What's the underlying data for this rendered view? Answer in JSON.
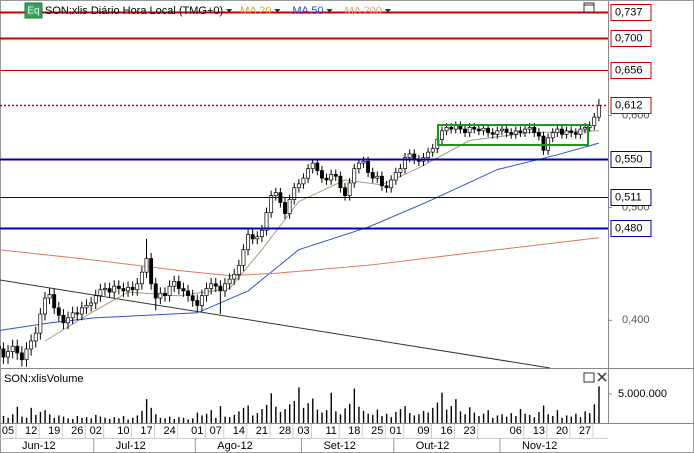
{
  "chart_data": {
    "type": "candlestick",
    "title": "SON:xlis Diário Hora Local (TMG+0)",
    "badge": "Eq",
    "log": true,
    "ylim": [
      0.364,
      0.754
    ],
    "yticks": [
      {
        "value": 0.4,
        "label": "0,400"
      },
      {
        "value": 0.5,
        "label": "0,500"
      },
      {
        "value": 0.6,
        "label": "0,600"
      }
    ],
    "levels": [
      {
        "value": 0.737,
        "label": "0,737",
        "color": "#c00000",
        "width": 2,
        "dashed": false
      },
      {
        "value": 0.7,
        "label": "0,700",
        "color": "#c00000",
        "width": 2,
        "dashed": false
      },
      {
        "value": 0.656,
        "label": "0,656",
        "color": "#c00000",
        "width": 1,
        "dashed": false
      },
      {
        "value": 0.612,
        "label": "0,612",
        "color": "#c00000",
        "width": 1.5,
        "dashed": true
      },
      {
        "value": 0.55,
        "label": "0,550",
        "color": "#0000a0",
        "width": 2,
        "dashed": false
      },
      {
        "value": 0.511,
        "label": "0,511",
        "color": "#0000a0",
        "width": 1,
        "dashed": false
      },
      {
        "value": 0.48,
        "label": "0,480",
        "color": "#0000a0",
        "width": 2,
        "dashed": false
      }
    ],
    "categories": [
      null,
      null,
      "05",
      null,
      null,
      null,
      null,
      "12",
      null,
      null,
      null,
      null,
      "19",
      null,
      null,
      null,
      null,
      "26",
      null,
      null,
      null,
      "02",
      null,
      null,
      null,
      null,
      null,
      "10",
      null,
      null,
      null,
      null,
      "17",
      null,
      null,
      null,
      null,
      "24",
      null,
      null,
      null,
      null,
      null,
      "01",
      null,
      null,
      null,
      "07",
      null,
      null,
      null,
      null,
      "14",
      null,
      null,
      null,
      null,
      "21",
      null,
      null,
      null,
      null,
      "28",
      null,
      null,
      null,
      "03",
      null,
      null,
      null,
      null,
      null,
      "11",
      null,
      null,
      null,
      null,
      "18",
      null,
      null,
      null,
      null,
      "25",
      null,
      null,
      null,
      "01",
      null,
      null,
      null,
      null,
      null,
      "09",
      null,
      null,
      null,
      null,
      "16",
      null,
      null,
      null,
      null,
      "23",
      null,
      null,
      null,
      null,
      null,
      null,
      null,
      null,
      null,
      "06",
      null,
      null,
      null,
      null,
      "13",
      null,
      null,
      null,
      null,
      "20",
      null,
      null,
      null,
      null,
      "27",
      null,
      null,
      null
    ],
    "months": [
      "Jun-12",
      "Jul-12",
      "Ago-12",
      "Set-12",
      "Out-12",
      "Nov-12"
    ],
    "open": [
      0.38,
      0.378,
      0.372,
      0.376,
      0.38,
      0.375,
      0.37,
      0.378,
      0.384,
      0.39,
      0.405,
      0.418,
      0.421,
      0.41,
      0.404,
      0.398,
      0.402,
      0.406,
      0.405,
      0.41,
      0.412,
      0.414,
      0.42,
      0.425,
      0.426,
      0.423,
      0.428,
      0.426,
      0.424,
      0.427,
      0.425,
      0.43,
      0.44,
      0.452,
      0.43,
      0.418,
      0.422,
      0.42,
      0.428,
      0.432,
      0.426,
      0.424,
      0.42,
      0.416,
      0.412,
      0.42,
      0.426,
      0.43,
      0.428,
      0.424,
      0.43,
      0.434,
      0.438,
      0.446,
      0.46,
      0.474,
      0.47,
      0.472,
      0.478,
      0.495,
      0.512,
      0.515,
      0.505,
      0.494,
      0.508,
      0.52,
      0.524,
      0.53,
      0.54,
      0.546,
      0.538,
      0.53,
      0.528,
      0.534,
      0.532,
      0.52,
      0.512,
      0.525,
      0.54,
      0.546,
      0.548,
      0.536,
      0.53,
      0.532,
      0.522,
      0.52,
      0.528,
      0.536,
      0.54,
      0.552,
      0.556,
      0.55,
      0.548,
      0.552,
      0.558,
      0.562,
      0.572,
      0.582,
      0.586,
      0.584,
      0.588,
      0.584,
      0.58,
      0.586,
      0.584,
      0.582,
      0.585,
      0.58,
      0.578,
      0.582,
      0.584,
      0.58,
      0.578,
      0.582,
      0.58,
      0.584,
      0.586,
      0.58,
      0.576,
      0.56,
      0.574,
      0.58,
      0.584,
      0.578,
      0.582,
      0.58,
      0.578,
      0.584,
      0.586,
      0.588,
      0.598
    ],
    "high": [
      0.385,
      0.383,
      0.381,
      0.385,
      0.385,
      0.38,
      0.383,
      0.389,
      0.395,
      0.41,
      0.423,
      0.426,
      0.426,
      0.415,
      0.409,
      0.407,
      0.411,
      0.411,
      0.415,
      0.417,
      0.419,
      0.425,
      0.43,
      0.431,
      0.431,
      0.433,
      0.433,
      0.431,
      0.432,
      0.432,
      0.435,
      0.445,
      0.47,
      0.457,
      0.435,
      0.427,
      0.427,
      0.433,
      0.437,
      0.437,
      0.431,
      0.429,
      0.425,
      0.421,
      0.425,
      0.431,
      0.435,
      0.435,
      0.433,
      0.435,
      0.439,
      0.443,
      0.451,
      0.465,
      0.479,
      0.479,
      0.477,
      0.483,
      0.5,
      0.517,
      0.52,
      0.52,
      0.51,
      0.513,
      0.525,
      0.529,
      0.535,
      0.545,
      0.551,
      0.551,
      0.543,
      0.535,
      0.539,
      0.539,
      0.537,
      0.525,
      0.53,
      0.545,
      0.551,
      0.553,
      0.553,
      0.541,
      0.537,
      0.537,
      0.527,
      0.533,
      0.541,
      0.545,
      0.557,
      0.561,
      0.561,
      0.555,
      0.557,
      0.563,
      0.567,
      0.577,
      0.587,
      0.591,
      0.591,
      0.593,
      0.593,
      0.589,
      0.591,
      0.591,
      0.589,
      0.59,
      0.59,
      0.585,
      0.587,
      0.589,
      0.589,
      0.585,
      0.587,
      0.587,
      0.589,
      0.591,
      0.591,
      0.585,
      0.581,
      0.579,
      0.585,
      0.589,
      0.589,
      0.587,
      0.587,
      0.585,
      0.589,
      0.591,
      0.593,
      0.603,
      0.62
    ],
    "low": [
      0.373,
      0.367,
      0.367,
      0.371,
      0.37,
      0.365,
      0.365,
      0.373,
      0.379,
      0.385,
      0.4,
      0.413,
      0.405,
      0.399,
      0.393,
      0.393,
      0.397,
      0.4,
      0.4,
      0.405,
      0.407,
      0.409,
      0.415,
      0.42,
      0.418,
      0.418,
      0.421,
      0.419,
      0.419,
      0.42,
      0.42,
      0.425,
      0.435,
      0.425,
      0.408,
      0.413,
      0.415,
      0.415,
      0.423,
      0.421,
      0.419,
      0.415,
      0.411,
      0.407,
      0.407,
      0.415,
      0.421,
      0.423,
      0.405,
      0.419,
      0.425,
      0.429,
      0.433,
      0.441,
      0.455,
      0.465,
      0.465,
      0.467,
      0.473,
      0.49,
      0.507,
      0.5,
      0.489,
      0.489,
      0.503,
      0.515,
      0.519,
      0.525,
      0.535,
      0.533,
      0.525,
      0.523,
      0.523,
      0.527,
      0.515,
      0.507,
      0.507,
      0.52,
      0.535,
      0.541,
      0.531,
      0.525,
      0.525,
      0.517,
      0.515,
      0.515,
      0.523,
      0.531,
      0.535,
      0.547,
      0.545,
      0.543,
      0.543,
      0.547,
      0.553,
      0.557,
      0.567,
      0.577,
      0.579,
      0.579,
      0.579,
      0.575,
      0.575,
      0.579,
      0.577,
      0.577,
      0.575,
      0.573,
      0.573,
      0.577,
      0.575,
      0.573,
      0.573,
      0.575,
      0.575,
      0.579,
      0.575,
      0.571,
      0.555,
      0.555,
      0.569,
      0.575,
      0.573,
      0.573,
      0.575,
      0.573,
      0.573,
      0.579,
      0.581,
      0.583,
      0.593
    ],
    "close": [
      0.378,
      0.372,
      0.376,
      0.38,
      0.375,
      0.37,
      0.378,
      0.384,
      0.39,
      0.405,
      0.418,
      0.421,
      0.41,
      0.404,
      0.398,
      0.402,
      0.406,
      0.405,
      0.41,
      0.412,
      0.414,
      0.42,
      0.425,
      0.426,
      0.423,
      0.428,
      0.426,
      0.424,
      0.427,
      0.425,
      0.43,
      0.44,
      0.452,
      0.43,
      0.418,
      0.422,
      0.42,
      0.428,
      0.432,
      0.426,
      0.424,
      0.42,
      0.416,
      0.412,
      0.42,
      0.426,
      0.43,
      0.428,
      0.424,
      0.43,
      0.434,
      0.438,
      0.446,
      0.46,
      0.474,
      0.47,
      0.472,
      0.478,
      0.495,
      0.512,
      0.515,
      0.505,
      0.494,
      0.508,
      0.52,
      0.524,
      0.53,
      0.54,
      0.546,
      0.538,
      0.53,
      0.528,
      0.534,
      0.532,
      0.52,
      0.512,
      0.525,
      0.54,
      0.546,
      0.548,
      0.536,
      0.53,
      0.532,
      0.522,
      0.52,
      0.528,
      0.536,
      0.54,
      0.552,
      0.556,
      0.55,
      0.548,
      0.552,
      0.558,
      0.562,
      0.572,
      0.582,
      0.586,
      0.584,
      0.588,
      0.584,
      0.58,
      0.586,
      0.584,
      0.582,
      0.585,
      0.58,
      0.578,
      0.582,
      0.584,
      0.58,
      0.578,
      0.582,
      0.58,
      0.584,
      0.586,
      0.58,
      0.576,
      0.56,
      0.574,
      0.58,
      0.584,
      0.578,
      0.582,
      0.58,
      0.578,
      0.584,
      0.586,
      0.588,
      0.598,
      0.612
    ],
    "series": [
      {
        "name": "MA 20",
        "color": "#a89a78",
        "label_color": "#e0a030",
        "x": [
          10,
          20,
          28,
          39,
          50,
          57,
          65,
          75,
          83,
          91,
          102,
          115,
          130
        ],
        "values": [
          0.384,
          0.406,
          0.423,
          0.42,
          0.426,
          0.46,
          0.506,
          0.528,
          0.523,
          0.541,
          0.571,
          0.58,
          0.582
        ]
      },
      {
        "name": "MA 50",
        "color": "#3050d0",
        "label_color": "#3040e0",
        "x": [
          0,
          11,
          21,
          43,
          54,
          65,
          80,
          93,
          108,
          121,
          130
        ],
        "values": [
          0.392,
          0.398,
          0.402,
          0.406,
          0.424,
          0.46,
          0.481,
          0.506,
          0.539,
          0.555,
          0.568
        ]
      },
      {
        "name": "MA 200",
        "color": "#e07858",
        "label_color": "#f0a080",
        "x": [
          0,
          20,
          40,
          50,
          60,
          80,
          100,
          130
        ],
        "values": [
          0.46,
          0.451,
          0.441,
          0.437,
          0.439,
          0.446,
          0.456,
          0.471
        ]
      }
    ],
    "volume": {
      "title": "SON:xlisVolume",
      "color": "#000000",
      "ylim": [
        0,
        9100000
      ],
      "yticks": [
        {
          "value": 5000000,
          "label": "5.000.000"
        }
      ],
      "values": [
        1800000,
        1200000,
        900000,
        1500000,
        2800000,
        1100000,
        900000,
        2600000,
        1400000,
        1900000,
        2200000,
        1500000,
        900000,
        1300000,
        1100000,
        800000,
        700000,
        1200000,
        900000,
        1000000,
        800000,
        1400000,
        1100000,
        900000,
        700000,
        1000000,
        800000,
        1200000,
        600000,
        900000,
        1300000,
        2100000,
        4100000,
        2600000,
        1500000,
        900000,
        800000,
        1100000,
        700000,
        1000000,
        900000,
        600000,
        800000,
        1800000,
        1300000,
        1600000,
        2200000,
        900000,
        2900000,
        1100000,
        1000000,
        1400000,
        2000000,
        2600000,
        3000000,
        1300000,
        1700000,
        2400000,
        3100000,
        5100000,
        2800000,
        1900000,
        2400000,
        3200000,
        3800000,
        6100000,
        2600000,
        3400000,
        4200000,
        2300000,
        1800000,
        2200000,
        5200000,
        2000000,
        1500000,
        2500000,
        3300000,
        5900000,
        2800000,
        2100000,
        1600000,
        1400000,
        2300000,
        1200000,
        1600000,
        1000000,
        1900000,
        2400000,
        2900000,
        1700000,
        1300000,
        1500000,
        2100000,
        1800000,
        2600000,
        3500000,
        5200000,
        2300000,
        2900000,
        4100000,
        2000000,
        1500000,
        2700000,
        1800000,
        1200000,
        1600000,
        2200000,
        900000,
        1300000,
        1500000,
        1100000,
        1700000,
        1200000,
        2400000,
        1600000,
        1400000,
        1000000,
        1900000,
        3000000,
        1500000,
        1200000,
        2200000,
        900000,
        1300000,
        1100000,
        1600000,
        1000000,
        2000000,
        1700000,
        3200000,
        6300000
      ]
    }
  }
}
